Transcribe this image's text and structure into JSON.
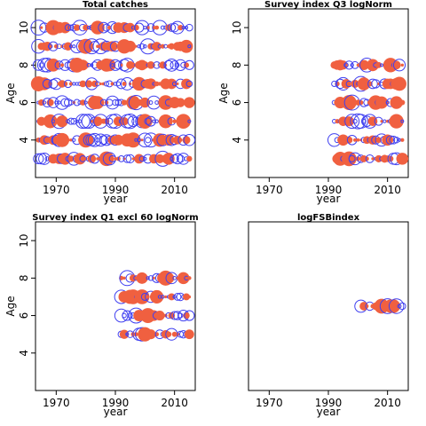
{
  "chart_data": [
    {
      "type": "scatter",
      "title": "Total catches",
      "xlabel": "year",
      "ylabel": "Age",
      "xlim": [
        1963,
        2017
      ],
      "ylim": [
        2,
        11
      ],
      "xticks": [
        1970,
        1990,
        2010
      ],
      "yticks": [
        4,
        6,
        8,
        10
      ],
      "year_start": 1964,
      "year_end": 2015,
      "ages": [
        3,
        4,
        5,
        6,
        7,
        8,
        9,
        10
      ],
      "bubbles": "residuals",
      "colors": {
        "positive": "#4040f0",
        "negative": "#f06040"
      }
    },
    {
      "type": "scatter",
      "title": "Survey index Q3 logNorm",
      "xlabel": "year",
      "ylabel": "Age",
      "xlim": [
        1963,
        2017
      ],
      "ylim": [
        2,
        11
      ],
      "xticks": [
        1970,
        1990,
        2010
      ],
      "yticks": [
        4,
        6,
        8,
        10
      ],
      "year_start": 1992,
      "year_end": 2015,
      "ages": [
        3,
        4,
        5,
        6,
        7,
        8
      ],
      "bubbles": "residuals",
      "colors": {
        "positive": "#4040f0",
        "negative": "#f06040"
      }
    },
    {
      "type": "scatter",
      "title": "Survey index Q1 excl 60 logNorm",
      "xlabel": "year",
      "ylabel": "Age",
      "xlim": [
        1963,
        2017
      ],
      "ylim": [
        2,
        11
      ],
      "xticks": [
        1970,
        1990,
        2010
      ],
      "yticks": [
        4,
        6,
        8,
        10
      ],
      "year_start": 1992,
      "year_end": 2015,
      "ages": [
        5,
        6,
        7,
        8
      ],
      "bubbles": "residuals",
      "colors": {
        "positive": "#4040f0",
        "negative": "#f06040"
      }
    },
    {
      "type": "scatter",
      "title": "logFSBindex",
      "xlabel": "year",
      "ylabel": "",
      "xlim": [
        1963,
        2017
      ],
      "ylim": [
        2,
        11
      ],
      "xticks": [
        1970,
        1990,
        2010
      ],
      "yticks": [],
      "year_start": 2001,
      "year_end": 2015,
      "ages": [
        6.5
      ],
      "bubbles": "residuals",
      "colors": {
        "positive": "#4040f0",
        "negative": "#f06040"
      }
    }
  ]
}
